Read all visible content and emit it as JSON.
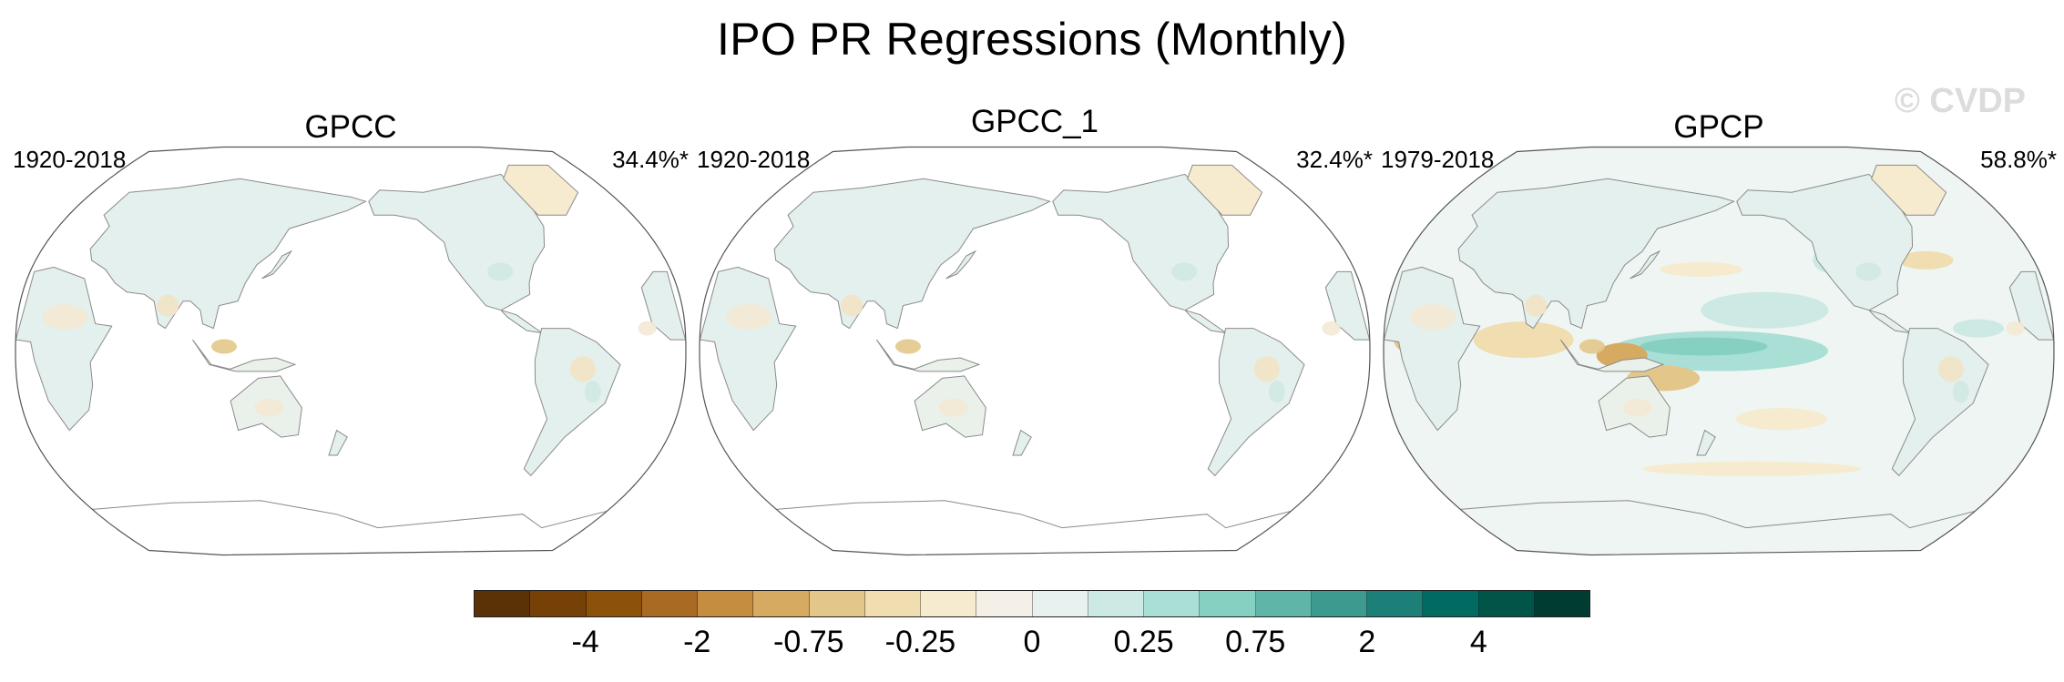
{
  "title": "IPO PR Regressions (Monthly)",
  "watermark": "© CVDP",
  "panels": [
    {
      "name": "GPCC",
      "years": "1920-2018",
      "pct": "34.4%*",
      "ocean": false
    },
    {
      "name": "GPCC_1",
      "years": "1920-2018",
      "pct": "32.4%*",
      "ocean": false
    },
    {
      "name": "GPCP",
      "years": "1979-2018",
      "pct": "58.8%*",
      "ocean": true
    }
  ],
  "colorbar": {
    "colors": [
      "#5a3206",
      "#754107",
      "#8c510a",
      "#a96b24",
      "#c58d3f",
      "#d6aa61",
      "#e3c68a",
      "#f0ddb0",
      "#f6ebce",
      "#f4f0e8",
      "#e8f1ef",
      "#cde9e4",
      "#aadfd5",
      "#86d0c2",
      "#5fb5a8",
      "#3d9a8f",
      "#1c8078",
      "#016a61",
      "#015448",
      "#003c30"
    ],
    "labels": [
      "-4",
      "-2",
      "-0.75",
      "-0.25",
      "0",
      "0.25",
      "0.75",
      "2",
      "4"
    ]
  },
  "chart_data": {
    "type": "map",
    "title": "IPO PR Regressions (Monthly)",
    "projection": "Robinson, Pacific-centered (180° central meridian)",
    "panels": [
      {
        "dataset": "GPCC",
        "period": "1920-2018",
        "variance_explained": "34.4%*",
        "coverage": "land only"
      },
      {
        "dataset": "GPCC_1",
        "period": "1920-2018",
        "variance_explained": "32.4%*",
        "coverage": "land only"
      },
      {
        "dataset": "GPCP",
        "period": "1979-2018",
        "variance_explained": "58.8%*",
        "coverage": "global (land and ocean)"
      }
    ],
    "colorbar_levels": [
      -4,
      -2,
      -0.75,
      -0.25,
      0,
      0.25,
      0.75,
      2,
      4
    ],
    "colormap": "brown (negative) to teal (positive), 20 bins"
  }
}
